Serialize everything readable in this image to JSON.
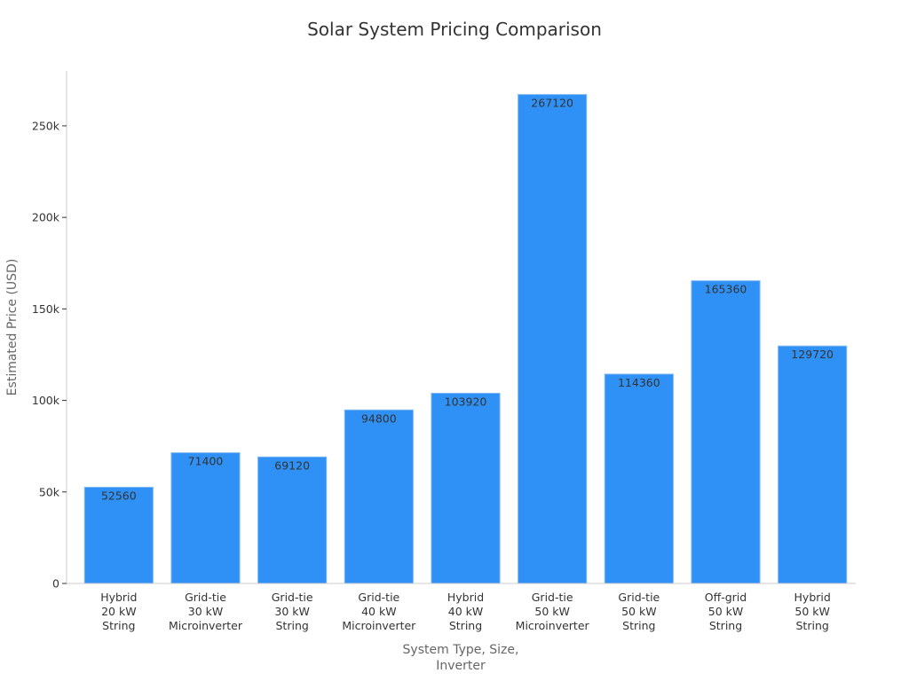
{
  "chart_data": {
    "type": "bar",
    "title": "Solar System Pricing Comparison",
    "xlabel_lines": [
      "System Type, Size,",
      "Inverter"
    ],
    "ylabel": "Estimated Price (USD)",
    "ylim": [
      0,
      280000
    ],
    "yticks": [
      0,
      50000,
      100000,
      150000,
      200000,
      250000
    ],
    "ytick_labels": [
      "0",
      "50k",
      "100k",
      "150k",
      "200k",
      "250k"
    ],
    "categories": [
      [
        "Hybrid",
        "20 kW",
        "String"
      ],
      [
        "Grid-tie",
        "30 kW",
        "Microinverter"
      ],
      [
        "Grid-tie",
        "30 kW",
        "String"
      ],
      [
        "Grid-tie",
        "40 kW",
        "Microinverter"
      ],
      [
        "Hybrid",
        "40 kW",
        "String"
      ],
      [
        "Grid-tie",
        "50 kW",
        "Microinverter"
      ],
      [
        "Grid-tie",
        "50 kW",
        "String"
      ],
      [
        "Off-grid",
        "50 kW",
        "String"
      ],
      [
        "Hybrid",
        "50 kW",
        "String"
      ]
    ],
    "values": [
      52560,
      71400,
      69120,
      94800,
      103920,
      267120,
      114360,
      165360,
      129720
    ],
    "data_labels": [
      "52560",
      "71400",
      "69120",
      "94800",
      "103920",
      "267120",
      "114360",
      "165360",
      "129720"
    ],
    "bar_color": "#2f91f6",
    "grid": false,
    "legend": "none"
  }
}
